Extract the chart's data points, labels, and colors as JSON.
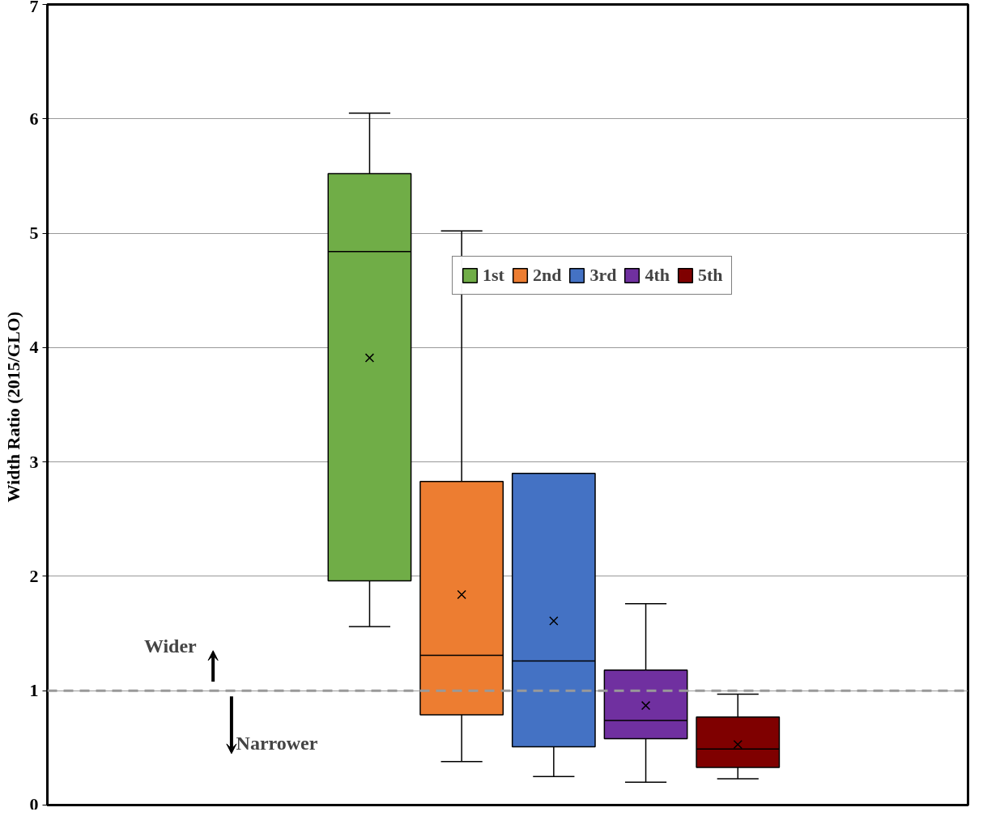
{
  "chart_data": {
    "type": "box",
    "ylabel": "Width Ratio  (2015/GLO)",
    "categories": [
      null,
      null,
      null,
      null,
      null,
      null,
      null,
      null,
      null,
      null
    ],
    "series": [
      {
        "name": "1st",
        "color": "#70ad47",
        "boxes": [
          null,
          null,
          null,
          {
            "low": 1.56,
            "q1": 1.96,
            "median": 4.84,
            "q3": 5.52,
            "high": 6.05,
            "mean": 3.91
          },
          null,
          null,
          null,
          null,
          null,
          null
        ]
      },
      {
        "name": "2nd",
        "color": "#ed7d31",
        "boxes": [
          null,
          null,
          null,
          null,
          {
            "low": 0.38,
            "q1": 0.79,
            "median": 1.31,
            "q3": 2.83,
            "high": 5.02,
            "mean": 1.84
          },
          null,
          null,
          null,
          null,
          null
        ]
      },
      {
        "name": "3rd",
        "color": "#4472c4",
        "boxes": [
          null,
          null,
          null,
          null,
          null,
          {
            "low": 0.25,
            "q1": 0.51,
            "median": 1.26,
            "q3": 2.9,
            "high": 2.9,
            "mean": 1.61
          },
          null,
          null,
          null,
          null
        ]
      },
      {
        "name": "4th",
        "color": "#7030a0",
        "boxes": [
          null,
          null,
          null,
          null,
          null,
          null,
          {
            "low": 0.2,
            "q1": 0.58,
            "median": 0.74,
            "q3": 1.18,
            "high": 1.76,
            "mean": 0.87
          },
          null,
          null,
          null
        ]
      },
      {
        "name": "5th",
        "color": "#7f0000",
        "boxes": [
          null,
          null,
          null,
          null,
          null,
          null,
          null,
          {
            "low": 0.23,
            "q1": 0.33,
            "median": 0.49,
            "q3": 0.77,
            "high": 0.97,
            "mean": 0.53
          },
          null,
          null
        ]
      }
    ],
    "ylim": [
      0,
      7
    ],
    "yticks": [
      0,
      1,
      2,
      3,
      4,
      5,
      6,
      7
    ],
    "grid": "y",
    "legend": "top right",
    "marker": "cross",
    "tick_labels": "y",
    "ref_lines": [
      {
        "axis": "y",
        "value": 1,
        "color": "#999999",
        "line_style": "dashed"
      }
    ],
    "annotations": [
      "Wider",
      "Narrower"
    ]
  }
}
